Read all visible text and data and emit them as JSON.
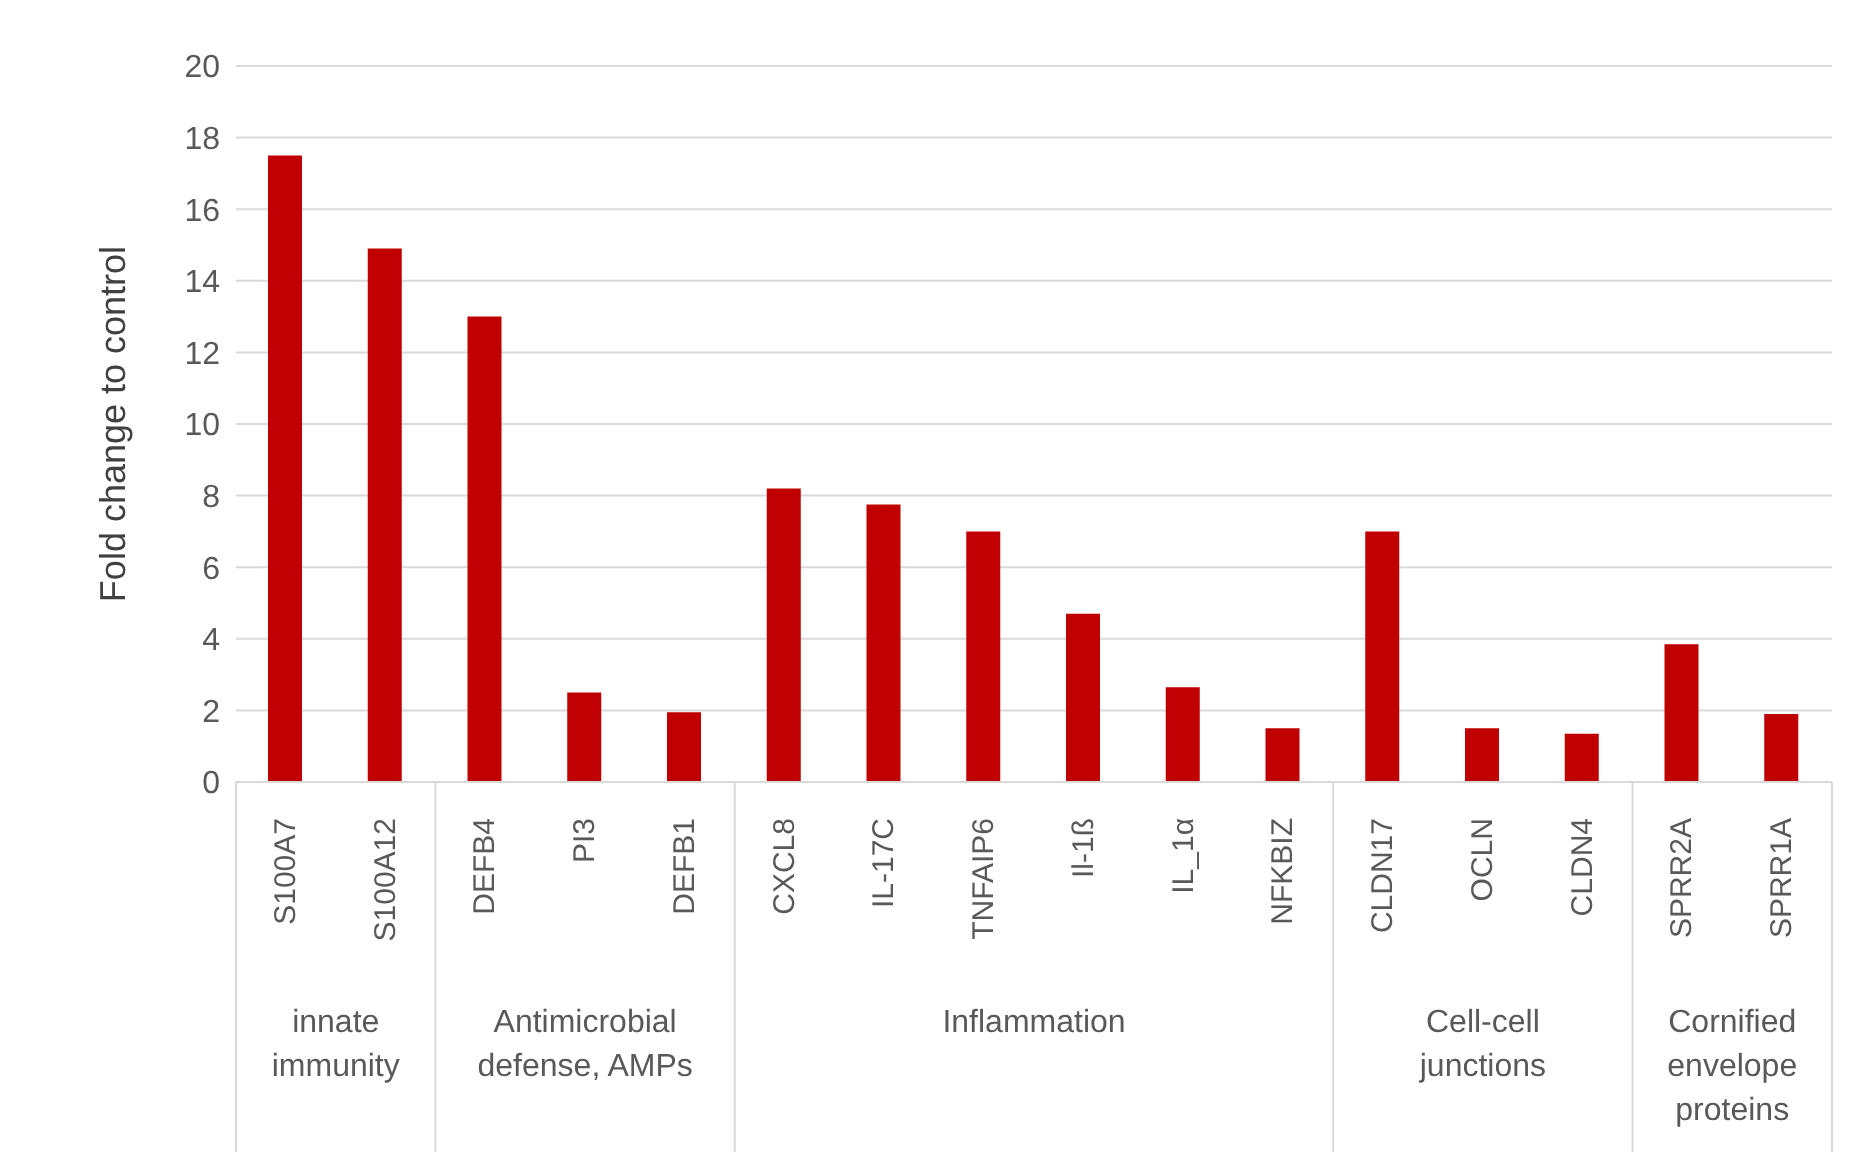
{
  "chart_data": {
    "type": "bar",
    "ylabel": "Fold change to control",
    "categories": [
      "S100A7",
      "S100A12",
      "DEFB4",
      "PI3",
      "DEFB1",
      "CXCL8",
      "IL-17C",
      "TNFAIP6",
      "Il-1ß",
      "IL_1α",
      "NFKBIZ",
      "CLDN17",
      "OCLN",
      "CLDN4",
      "SPRR2A",
      "SPRR1A"
    ],
    "values": [
      17.5,
      14.9,
      13.0,
      2.5,
      1.95,
      8.2,
      7.75,
      7.0,
      4.7,
      2.65,
      1.5,
      7.0,
      1.5,
      1.35,
      3.85,
      1.9
    ],
    "color": "#c00000",
    "ylim": [
      0,
      20
    ],
    "yticks": [
      0,
      2,
      4,
      6,
      8,
      10,
      12,
      14,
      16,
      18,
      20
    ],
    "grid": "y",
    "annotations": [
      "innate immunity",
      "Antimicrobial defense, AMPs",
      "Inflammation",
      "Cell-cell junctions",
      "Cornified envelope proteins"
    ]
  }
}
